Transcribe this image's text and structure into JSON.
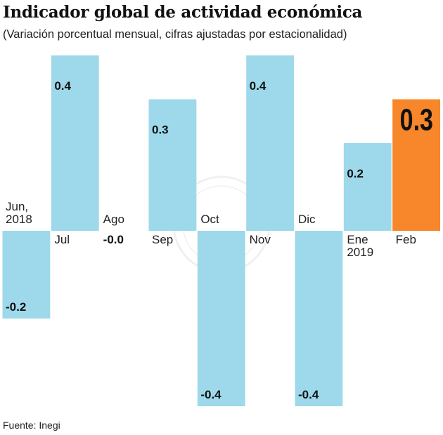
{
  "chart_data": {
    "type": "bar",
    "title": "Indicador global de actividad económica",
    "subtitle": "(Variación porcentual mensual, cifras ajustadas por estacionalidad)",
    "categories": [
      [
        "Jun,",
        "2018"
      ],
      [
        "Jul"
      ],
      [
        "Ago"
      ],
      [
        "Sep"
      ],
      [
        "Oct"
      ],
      [
        "Nov"
      ],
      [
        "Dic"
      ],
      [
        "Ene",
        "2019"
      ],
      [
        "Feb"
      ]
    ],
    "values": [
      -0.2,
      0.4,
      -0.0,
      0.3,
      -0.4,
      0.4,
      -0.4,
      0.2,
      0.3
    ],
    "value_labels": [
      "-0.2",
      "0.4",
      "-0.0",
      "0.3",
      "-0.4",
      "0.4",
      "-0.4",
      "0.2",
      "0.3"
    ],
    "highlight_index": 8,
    "colors": {
      "bar": "#9dd9ea",
      "highlight": "#f7872a"
    },
    "ylim": [
      -0.4,
      0.4
    ],
    "grid": false,
    "source": "Fuente: Inegi"
  }
}
